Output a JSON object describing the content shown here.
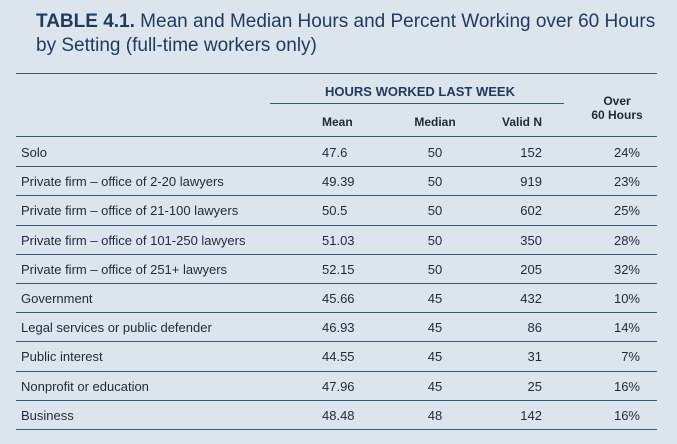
{
  "title": {
    "label": "TABLE 4.1.",
    "text": "Mean and Median Hours and Percent Working over 60 Hours by Setting (full-time workers only)"
  },
  "header": {
    "group": "HOURS WORKED LAST WEEK",
    "mean": "Mean",
    "median": "Median",
    "valid_n": "Valid N",
    "over_line1": "Over",
    "over_line2": "60 Hours"
  },
  "rows": [
    {
      "setting": "Solo",
      "mean": "47.6",
      "median": "50",
      "valid_n": "152",
      "over60": "24%"
    },
    {
      "setting": "Private firm – office of 2-20 lawyers",
      "mean": "49.39",
      "median": "50",
      "valid_n": "919",
      "over60": "23%"
    },
    {
      "setting": "Private firm – office of 21-100 lawyers",
      "mean": "50.5",
      "median": "50",
      "valid_n": "602",
      "over60": "25%"
    },
    {
      "setting": "Private firm – office of 101-250 lawyers",
      "mean": "51.03",
      "median": "50",
      "valid_n": "350",
      "over60": "28%"
    },
    {
      "setting": "Private firm – office of 251+ lawyers",
      "mean": "52.15",
      "median": "50",
      "valid_n": "205",
      "over60": "32%"
    },
    {
      "setting": "Government",
      "mean": "45.66",
      "median": "45",
      "valid_n": "432",
      "over60": "10%"
    },
    {
      "setting": "Legal services or public defender",
      "mean": "46.93",
      "median": "45",
      "valid_n": "86",
      "over60": "14%"
    },
    {
      "setting": "Public interest",
      "mean": "44.55",
      "median": "45",
      "valid_n": "31",
      "over60": "7%"
    },
    {
      "setting": "Nonprofit or education",
      "mean": "47.96",
      "median": "45",
      "valid_n": "25",
      "over60": "16%"
    },
    {
      "setting": "Business",
      "mean": "48.48",
      "median": "48",
      "valid_n": "142",
      "over60": "16%"
    }
  ]
}
